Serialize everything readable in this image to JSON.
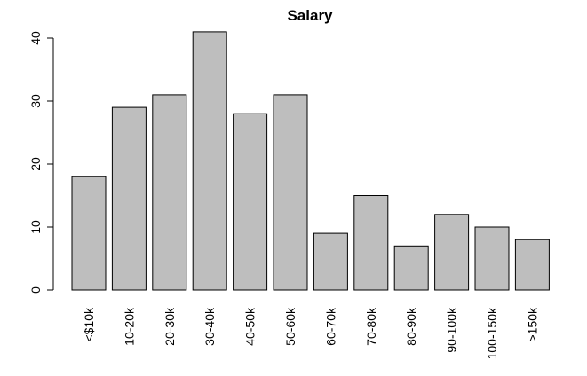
{
  "chart_data": {
    "type": "bar",
    "title": "Salary",
    "xlabel": "",
    "ylabel": "",
    "categories": [
      "<$10k",
      "10-20k",
      "20-30k",
      "30-40k",
      "40-50k",
      "50-60k",
      "60-70k",
      "70-80k",
      "80-90k",
      "90-100k",
      "100-150k",
      ">150k"
    ],
    "values": [
      18,
      29,
      31,
      41,
      28,
      31,
      9,
      15,
      7,
      12,
      10,
      8
    ],
    "ylim": [
      0,
      41
    ],
    "yticks": [
      0,
      10,
      20,
      30,
      40
    ],
    "grid": false,
    "legend": "none",
    "bar_color": "#bebebe",
    "bar_border_color": "#000000",
    "x_tick_label_orientation": "vertical"
  }
}
